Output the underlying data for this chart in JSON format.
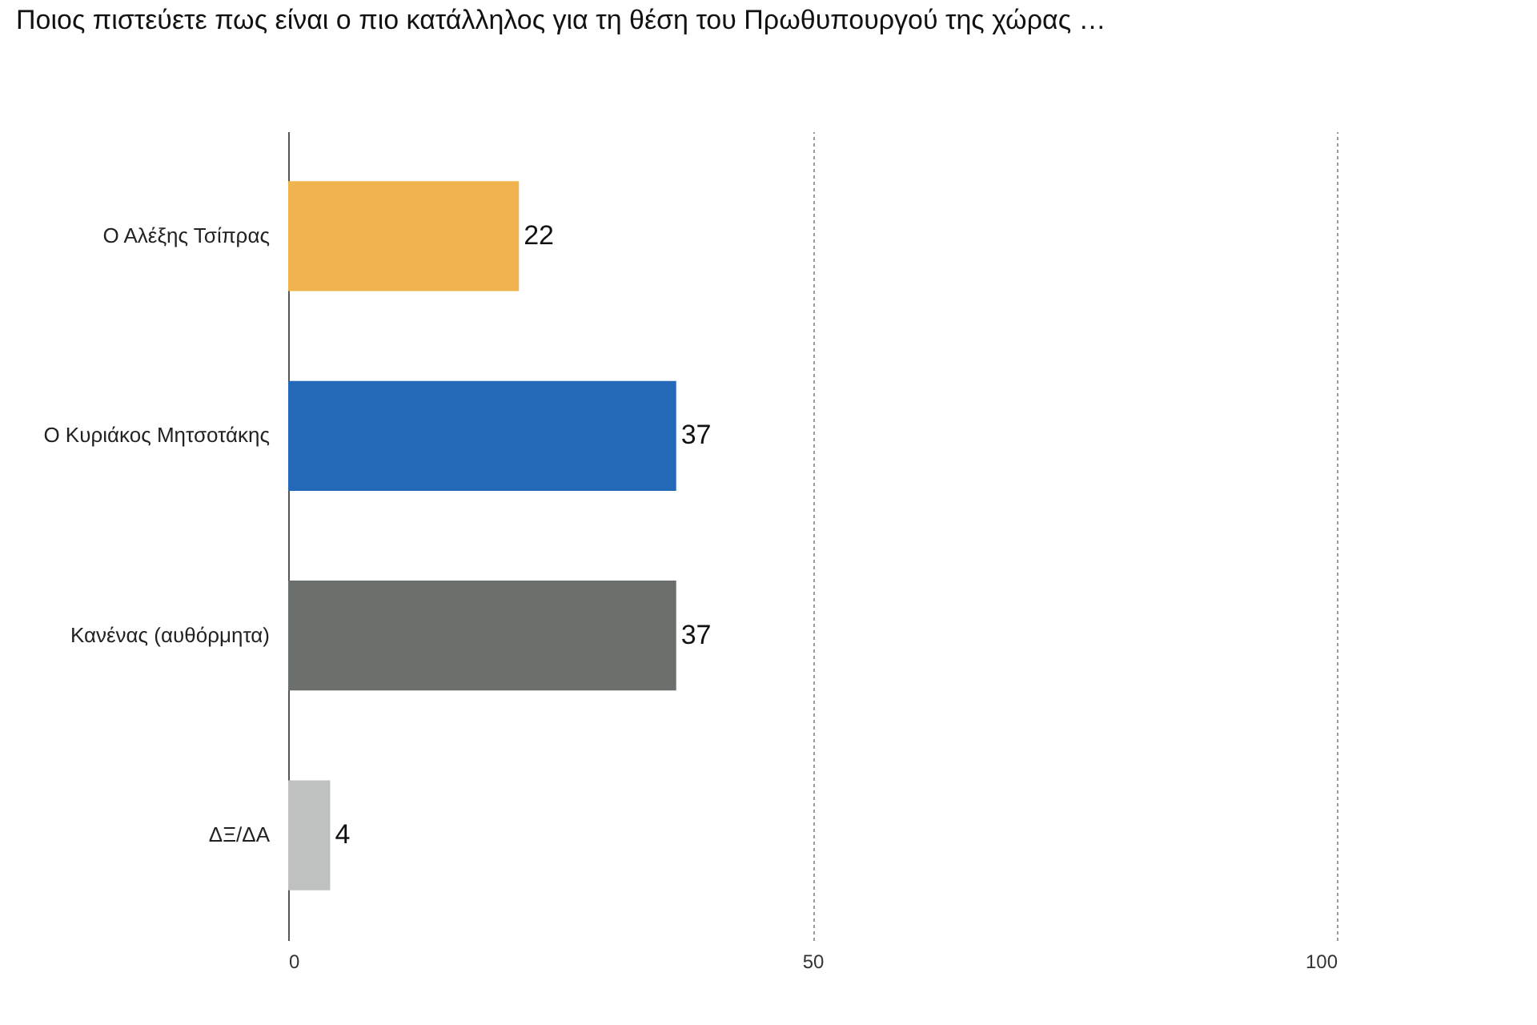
{
  "chart_data": {
    "type": "bar",
    "orientation": "horizontal",
    "title": "Ποιος πιστεύετε πως είναι ο πιο κατάλληλος για τη θέση του Πρωθυπουργού της χώρας …",
    "categories": [
      "Ο Αλέξης Τσίπρας",
      "Ο Κυριάκος Μητσοτάκης",
      "Κανένας (αυθόρμητα)",
      "ΔΞ/ΔΑ"
    ],
    "values": [
      22,
      37,
      37,
      4
    ],
    "colors": [
      "#f0b34e",
      "#2369b8",
      "#6b706d",
      "#bfc1c0"
    ],
    "xlim": [
      0,
      100
    ],
    "xticks": [
      0,
      50,
      100
    ],
    "grid": "x",
    "data_labels": true
  }
}
